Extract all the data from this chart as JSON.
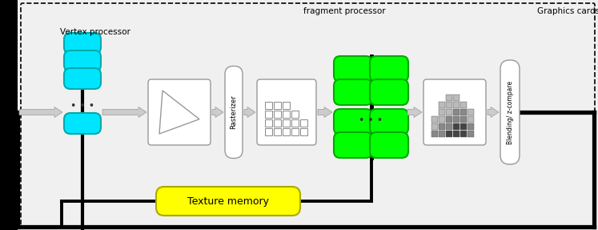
{
  "bg_color": "#f0f0f0",
  "border_color": "#000000",
  "title_fragment": "fragment processor",
  "title_graphics": "Graphics cards",
  "title_vertex": "Vertex processor",
  "label_rasterizer": "Rasterizer",
  "label_blending": "Blending/ z-compare",
  "label_texture": "Texture memory",
  "cyan_color": "#00e5ff",
  "green_color": "#00ff00",
  "yellow_color": "#ffff00",
  "white": "#ffffff",
  "black": "#000000",
  "arrow_fill": "#dddddd",
  "arrow_edge": "#888888"
}
